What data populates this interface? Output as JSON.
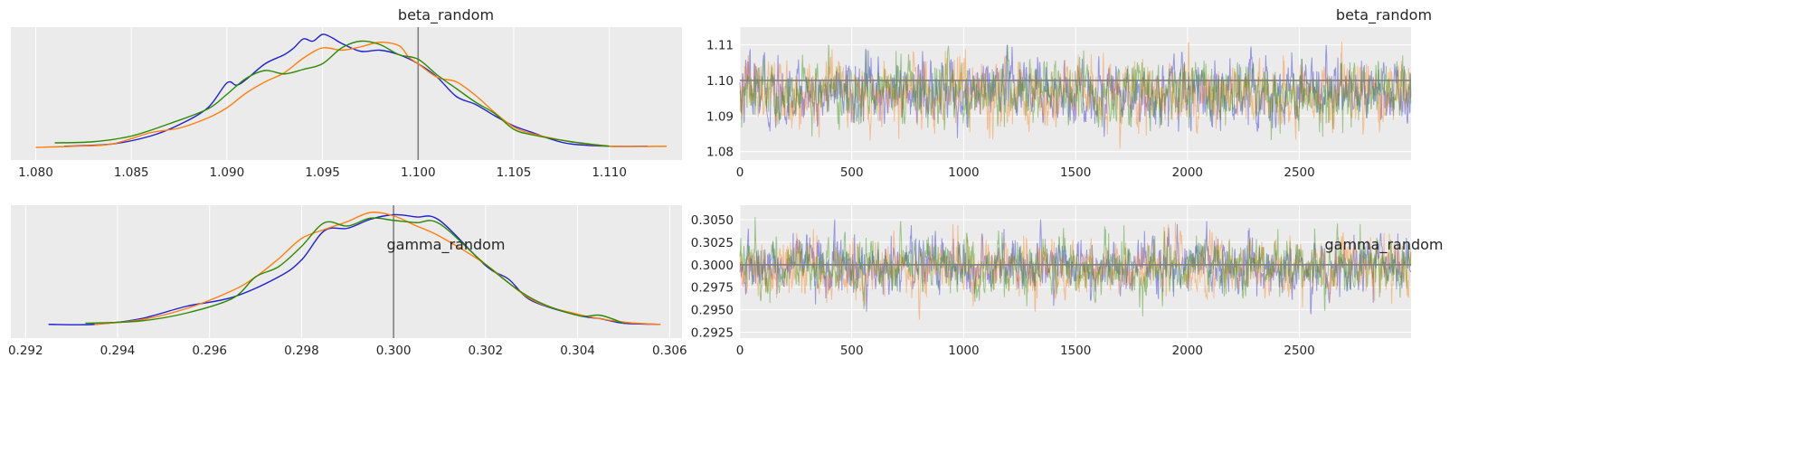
{
  "colors": {
    "panel_bg": "#ebebeb",
    "grid": "#ffffff",
    "ref_line": "#808080",
    "chain_0": "#1f1fd6",
    "chain_1": "#ff7f0e",
    "chain_2": "#2e8b00"
  },
  "chart_data": [
    {
      "type": "line",
      "kind": "density",
      "title": "beta_random",
      "xlabel": "",
      "ylabel": "",
      "xlim": [
        1.0787,
        1.1138
      ],
      "xticks": [
        "1.080",
        "1.085",
        "1.090",
        "1.095",
        "1.100",
        "1.105",
        "1.110"
      ],
      "xtick_values": [
        1.08,
        1.085,
        1.09,
        1.095,
        1.1,
        1.105,
        1.11
      ],
      "grid": true,
      "ref_value": 1.1,
      "series": [
        {
          "color_key": "chain_0",
          "x": [
            1.0815,
            1.084,
            1.086,
            1.0875,
            1.089,
            1.09,
            1.0905,
            1.091,
            1.092,
            1.093,
            1.0935,
            1.094,
            1.0945,
            1.095,
            1.0955,
            1.096,
            1.097,
            1.098,
            1.099,
            1.1,
            1.101,
            1.102,
            1.103,
            1.104,
            1.105,
            1.106,
            1.107,
            1.108,
            1.11,
            1.112
          ],
          "y": [
            0.01,
            0.03,
            0.1,
            0.2,
            0.35,
            0.57,
            0.55,
            0.6,
            0.74,
            0.82,
            0.88,
            0.96,
            0.94,
            1.0,
            0.97,
            0.92,
            0.85,
            0.86,
            0.82,
            0.74,
            0.62,
            0.45,
            0.38,
            0.28,
            0.19,
            0.13,
            0.07,
            0.03,
            0.01,
            0.01
          ]
        },
        {
          "color_key": "chain_1",
          "x": [
            1.08,
            1.082,
            1.084,
            1.086,
            1.0875,
            1.089,
            1.09,
            1.091,
            1.092,
            1.093,
            1.094,
            1.095,
            1.096,
            1.097,
            1.098,
            1.099,
            1.0995,
            1.1,
            1.101,
            1.102,
            1.103,
            1.104,
            1.105,
            1.106,
            1.108,
            1.11,
            1.113
          ],
          "y": [
            0.0,
            0.01,
            0.03,
            0.13,
            0.17,
            0.26,
            0.35,
            0.48,
            0.58,
            0.66,
            0.79,
            0.88,
            0.86,
            0.89,
            0.93,
            0.9,
            0.8,
            0.74,
            0.62,
            0.58,
            0.46,
            0.31,
            0.18,
            0.12,
            0.05,
            0.01,
            0.01
          ]
        },
        {
          "color_key": "chain_2",
          "x": [
            1.081,
            1.083,
            1.085,
            1.087,
            1.089,
            1.09,
            1.091,
            1.092,
            1.093,
            1.094,
            1.095,
            1.096,
            1.097,
            1.098,
            1.099,
            1.1,
            1.101,
            1.102,
            1.103,
            1.104,
            1.105,
            1.106,
            1.108,
            1.11
          ],
          "y": [
            0.04,
            0.05,
            0.1,
            0.21,
            0.34,
            0.47,
            0.61,
            0.68,
            0.65,
            0.69,
            0.74,
            0.88,
            0.94,
            0.91,
            0.82,
            0.78,
            0.64,
            0.52,
            0.4,
            0.3,
            0.16,
            0.11,
            0.05,
            0.01
          ]
        }
      ]
    },
    {
      "type": "line",
      "kind": "trace",
      "title": "beta_random",
      "xlabel": "",
      "ylabel": "",
      "xlim": [
        0,
        2999
      ],
      "ylim": [
        1.0776,
        1.115
      ],
      "xticks": [
        "0",
        "500",
        "1000",
        "1500",
        "2000",
        "2500"
      ],
      "xtick_values": [
        0,
        500,
        1000,
        1500,
        2000,
        2500
      ],
      "yticks": [
        "1.08",
        "1.09",
        "1.10",
        "1.11"
      ],
      "ytick_values": [
        1.08,
        1.09,
        1.1,
        1.11
      ],
      "grid": true,
      "ref_value": 1.1,
      "draws_per_chain": 3000,
      "chain_mean": 1.0965,
      "chain_sd": 0.0045,
      "chain_min": 1.0801,
      "chain_max": 1.1134
    },
    {
      "type": "line",
      "kind": "density",
      "title": "gamma_random",
      "xlabel": "",
      "ylabel": "",
      "xlim": [
        0.29168,
        0.30627
      ],
      "xticks": [
        "0.292",
        "0.294",
        "0.296",
        "0.298",
        "0.300",
        "0.302",
        "0.304",
        "0.306"
      ],
      "xtick_values": [
        0.292,
        0.294,
        0.296,
        0.298,
        0.3,
        0.302,
        0.304,
        0.306
      ],
      "grid": true,
      "ref_value": 0.3,
      "series": [
        {
          "color_key": "chain_0",
          "x": [
            0.2925,
            0.2935,
            0.2945,
            0.2955,
            0.2965,
            0.2975,
            0.298,
            0.2985,
            0.299,
            0.2995,
            0.3,
            0.3005,
            0.301,
            0.302,
            0.3025,
            0.303,
            0.304,
            0.3045,
            0.305,
            0.3058
          ],
          "y": [
            0.01,
            0.01,
            0.06,
            0.17,
            0.25,
            0.43,
            0.58,
            0.84,
            0.86,
            0.94,
            0.98,
            0.96,
            0.93,
            0.53,
            0.41,
            0.22,
            0.09,
            0.06,
            0.02,
            0.01
          ]
        },
        {
          "color_key": "chain_1",
          "x": [
            0.2935,
            0.2945,
            0.2955,
            0.2965,
            0.297,
            0.2975,
            0.298,
            0.2985,
            0.299,
            0.2995,
            0.3,
            0.3005,
            0.301,
            0.302,
            0.303,
            0.304,
            0.305,
            0.3058
          ],
          "y": [
            0.01,
            0.05,
            0.15,
            0.31,
            0.43,
            0.59,
            0.77,
            0.85,
            0.92,
            1.0,
            0.97,
            0.88,
            0.79,
            0.54,
            0.23,
            0.1,
            0.03,
            0.01
          ]
        },
        {
          "color_key": "chain_2",
          "x": [
            0.2933,
            0.2945,
            0.2955,
            0.2965,
            0.297,
            0.2975,
            0.298,
            0.2985,
            0.299,
            0.2995,
            0.3,
            0.3005,
            0.301,
            0.302,
            0.303,
            0.304,
            0.3045,
            0.305
          ],
          "y": [
            0.02,
            0.04,
            0.11,
            0.24,
            0.43,
            0.52,
            0.7,
            0.91,
            0.88,
            0.95,
            0.93,
            0.91,
            0.9,
            0.54,
            0.24,
            0.09,
            0.09,
            0.02
          ]
        }
      ]
    },
    {
      "type": "line",
      "kind": "trace",
      "title": "gamma_random",
      "xlabel": "",
      "ylabel": "",
      "xlim": [
        0,
        2999
      ],
      "ylim": [
        0.29185,
        0.3066
      ],
      "xticks": [
        "0",
        "500",
        "1000",
        "1500",
        "2000",
        "2500"
      ],
      "xtick_values": [
        0,
        500,
        1000,
        1500,
        2000,
        2500
      ],
      "yticks": [
        "0.2925",
        "0.2950",
        "0.2975",
        "0.3000",
        "0.3025",
        "0.3050"
      ],
      "ytick_values": [
        0.2925,
        0.295,
        0.2975,
        0.3,
        0.3025,
        0.305
      ],
      "grid": true,
      "ref_value": 0.3,
      "draws_per_chain": 3000,
      "chain_mean": 0.2998,
      "chain_sd": 0.0016,
      "chain_min": 0.2926,
      "chain_max": 0.3055
    }
  ]
}
